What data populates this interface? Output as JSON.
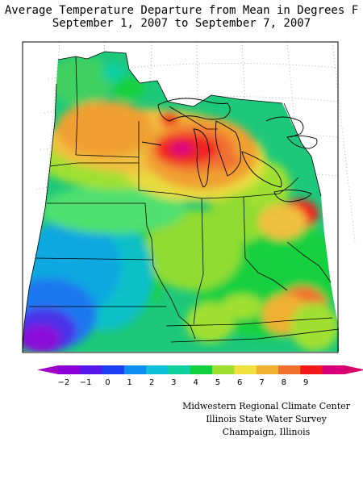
{
  "title_line1": "Average Temperature Departure from Mean in Degrees F",
  "title_line2": "September 1, 2007 to September 7, 2007",
  "legend": {
    "labels": [
      "−2",
      "−1",
      "0",
      "1",
      "2",
      "3",
      "4",
      "5",
      "6",
      "7",
      "8",
      "9"
    ],
    "colors": [
      "#8a00d8",
      "#5518e8",
      "#1a3ff0",
      "#0f8cf0",
      "#10c0d8",
      "#10d0a0",
      "#10d040",
      "#a0e030",
      "#f0e040",
      "#f0b030",
      "#f07030",
      "#f01818",
      "#d80078"
    ],
    "left_cap_color": "#a000c8",
    "right_cap_color": "#d8006a"
  },
  "credits": [
    "Midwestern Regional Climate Center",
    "Illinois State Water Survey",
    "Champaign, Illinois"
  ]
}
